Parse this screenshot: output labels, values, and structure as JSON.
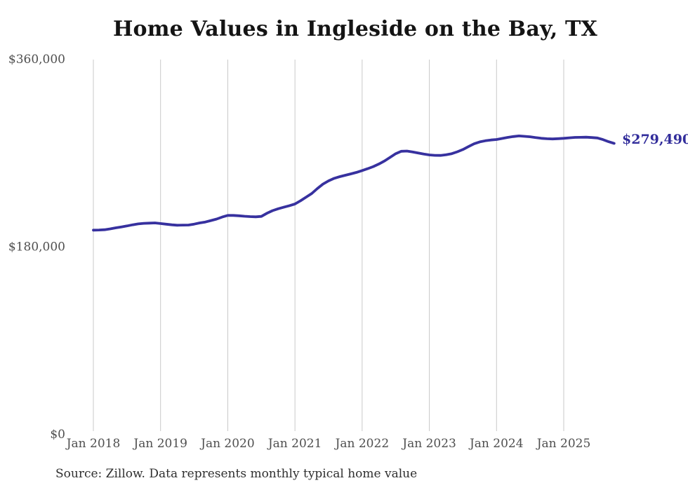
{
  "chart": {
    "title": "Home Values in Ingleside on the Bay, TX",
    "end_label": "$279,490",
    "source": "Source: Zillow. Data represents monthly typical home value"
  },
  "colors": {
    "line": "#37319f",
    "end_label_text": "#322d9b",
    "grid": "#c9c9c9",
    "axis_text": "#4f4f4f",
    "title_text": "#141414",
    "source_text": "#2f2f2f",
    "background": "#ffffff"
  },
  "chart_data": {
    "type": "line",
    "title": "Home Values in Ingleside on the Bay, TX",
    "series_name": "Typical home value (monthly)",
    "x_start": "Jan 2018",
    "x_end": "Oct 2025",
    "x_tick_labels": [
      "Jan 2018",
      "Jan 2019",
      "Jan 2020",
      "Jan 2021",
      "Jan 2022",
      "Jan 2023",
      "Jan 2024",
      "Jan 2025"
    ],
    "y_tick_values": [
      0,
      180000,
      360000
    ],
    "y_tick_labels": [
      "$0",
      "$180,000",
      "$360,000"
    ],
    "ylim": [
      0,
      360000
    ],
    "grid": "vertical-only",
    "legend_position": "none",
    "latest_value": 279490,
    "latest_value_label": "$279,490",
    "values": [
      196300,
      196400,
      196700,
      197500,
      198500,
      199400,
      200300,
      201400,
      202300,
      202800,
      203000,
      203200,
      202600,
      202000,
      201400,
      201000,
      201100,
      201200,
      202100,
      203200,
      204100,
      205500,
      206900,
      208900,
      210400,
      210400,
      210100,
      209600,
      209300,
      209100,
      209500,
      212500,
      215000,
      216800,
      218300,
      219800,
      221400,
      224500,
      228000,
      231500,
      236200,
      240500,
      243600,
      246000,
      247600,
      249000,
      250300,
      251700,
      253500,
      255300,
      257300,
      259800,
      262700,
      266200,
      269700,
      272000,
      272200,
      271400,
      270300,
      269300,
      268500,
      268100,
      268000,
      268700,
      269700,
      271500,
      273700,
      276500,
      279200,
      281000,
      282100,
      282800,
      283300,
      284300,
      285300,
      286100,
      286700,
      286300,
      285900,
      285100,
      284400,
      284000,
      283800,
      284100,
      284400,
      284900,
      285300,
      285400,
      285500,
      285200,
      284800,
      283200,
      281200,
      279490
    ]
  }
}
